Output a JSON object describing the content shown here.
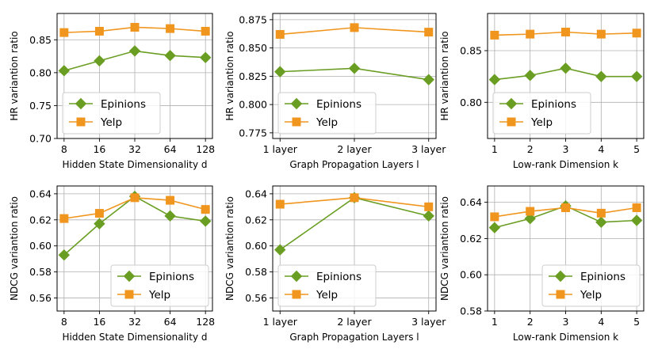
{
  "colors": {
    "epinions": "#6a9e23",
    "yelp": "#f0961e",
    "grid": "#b0b0b0"
  },
  "chart_data": [
    {
      "type": "line",
      "title": "",
      "xlabel": "Hidden State Dimensionality d",
      "ylabel": "HR variantion ratio",
      "categories": [
        "8",
        "16",
        "32",
        "64",
        "128"
      ],
      "ylim": [
        0.7,
        0.89
      ],
      "yticks": [
        0.7,
        0.75,
        0.8,
        0.85
      ],
      "ytick_labels": [
        "0.70",
        "0.75",
        "0.80",
        "0.85"
      ],
      "legend": "lower-left",
      "series": [
        {
          "name": "Epinions",
          "values": [
            0.803,
            0.818,
            0.833,
            0.826,
            0.823
          ]
        },
        {
          "name": "Yelp",
          "values": [
            0.861,
            0.863,
            0.869,
            0.867,
            0.863
          ]
        }
      ]
    },
    {
      "type": "line",
      "title": "",
      "xlabel": "Graph Propagation Layers l",
      "ylabel": "HR variantion ratio",
      "categories": [
        "1 layer",
        "2 layer",
        "3 layer"
      ],
      "ylim": [
        0.77,
        0.8805
      ],
      "yticks": [
        0.775,
        0.8,
        0.825,
        0.85,
        0.875
      ],
      "ytick_labels": [
        "0.775",
        "0.800",
        "0.825",
        "0.850",
        "0.875"
      ],
      "legend": "lower-left",
      "series": [
        {
          "name": "Epinions",
          "values": [
            0.829,
            0.832,
            0.822
          ]
        },
        {
          "name": "Yelp",
          "values": [
            0.862,
            0.868,
            0.864
          ]
        }
      ]
    },
    {
      "type": "line",
      "title": "",
      "xlabel": "Low-rank Dimension k",
      "ylabel": "HR variantion ratio",
      "categories": [
        "1",
        "2",
        "3",
        "4",
        "5"
      ],
      "ylim": [
        0.765,
        0.886
      ],
      "yticks": [
        0.8,
        0.85
      ],
      "ytick_labels": [
        "0.80",
        "0.85"
      ],
      "legend": "lower-left",
      "series": [
        {
          "name": "Epinions",
          "values": [
            0.822,
            0.826,
            0.833,
            0.825,
            0.825
          ]
        },
        {
          "name": "Yelp",
          "values": [
            0.865,
            0.866,
            0.868,
            0.866,
            0.867
          ]
        }
      ]
    },
    {
      "type": "line",
      "title": "",
      "xlabel": "Hidden State Dimensionality d",
      "ylabel": "NDCG variantion ratio",
      "categories": [
        "8",
        "16",
        "32",
        "64",
        "128"
      ],
      "ylim": [
        0.55,
        0.646
      ],
      "yticks": [
        0.56,
        0.58,
        0.6,
        0.62,
        0.64
      ],
      "ytick_labels": [
        "0.56",
        "0.58",
        "0.60",
        "0.62",
        "0.64"
      ],
      "legend": "lower-right",
      "series": [
        {
          "name": "Epinions",
          "values": [
            0.593,
            0.617,
            0.638,
            0.623,
            0.619
          ]
        },
        {
          "name": "Yelp",
          "values": [
            0.621,
            0.625,
            0.637,
            0.635,
            0.628
          ]
        }
      ]
    },
    {
      "type": "line",
      "title": "",
      "xlabel": "Graph Propagation Layers l",
      "ylabel": "NDCG variantion ratio",
      "categories": [
        "1 layer",
        "2 layer",
        "3 layer"
      ],
      "ylim": [
        0.55,
        0.646
      ],
      "yticks": [
        0.56,
        0.58,
        0.6,
        0.62,
        0.64
      ],
      "ytick_labels": [
        "0.56",
        "0.58",
        "0.60",
        "0.62",
        "0.64"
      ],
      "legend": "lower-left",
      "series": [
        {
          "name": "Epinions",
          "values": [
            0.597,
            0.637,
            0.623
          ]
        },
        {
          "name": "Yelp",
          "values": [
            0.632,
            0.637,
            0.63
          ]
        }
      ]
    },
    {
      "type": "line",
      "title": "",
      "xlabel": "Low-rank Dimension k",
      "ylabel": "NDCG variantion ratio",
      "categories": [
        "1",
        "2",
        "3",
        "4",
        "5"
      ],
      "ylim": [
        0.58,
        0.649
      ],
      "yticks": [
        0.58,
        0.6,
        0.62,
        0.64
      ],
      "ytick_labels": [
        "0.58",
        "0.60",
        "0.62",
        "0.64"
      ],
      "legend": "lower-right",
      "series": [
        {
          "name": "Epinions",
          "values": [
            0.626,
            0.631,
            0.638,
            0.629,
            0.63
          ]
        },
        {
          "name": "Yelp",
          "values": [
            0.632,
            0.635,
            0.637,
            0.634,
            0.637
          ]
        }
      ]
    }
  ]
}
